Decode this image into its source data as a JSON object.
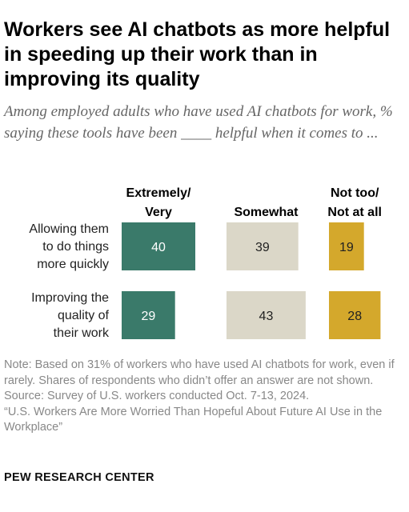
{
  "header": {
    "title": "Workers see AI chatbots as more helpful in speeding up their work than in improving its quality",
    "subtitle": "Among employed adults who have used AI chatbots for work, % saying these tools have been ____ helpful when it comes to ..."
  },
  "colors": {
    "extremely_very": "#3a7a6a",
    "somewhat": "#dbd7c8",
    "not_too": "#d4a82c"
  },
  "chart_data": {
    "type": "table",
    "columns": [
      {
        "label_lines": [
          "Extremely/",
          "Very"
        ],
        "color": "#3a7a6a",
        "text_color": "#ffffff"
      },
      {
        "label_lines": [
          "Somewhat"
        ],
        "color": "#dbd7c8",
        "text_color": "#222222"
      },
      {
        "label_lines": [
          "Not too/",
          "Not at all"
        ],
        "color": "#d4a82c",
        "text_color": "#222222"
      }
    ],
    "rows": [
      {
        "label_lines": [
          "Allowing them",
          "to do things",
          "more quickly"
        ],
        "values": [
          40,
          39,
          19
        ]
      },
      {
        "label_lines": [
          "Improving the",
          "quality of",
          "their work"
        ],
        "values": [
          29,
          43,
          28
        ]
      }
    ],
    "xlim": [
      0,
      100
    ]
  },
  "footer": {
    "note": "Note: Based on 31% of workers who have used AI chatbots for work, even if rarely. Shares of respondents who didn’t offer an answer are not shown.",
    "source": "Source: Survey of U.S. workers conducted Oct. 7-13, 2024.",
    "report": "“U.S. Workers Are More Worried Than Hopeful About Future AI Use in the Workplace”",
    "brand": "PEW RESEARCH CENTER"
  }
}
